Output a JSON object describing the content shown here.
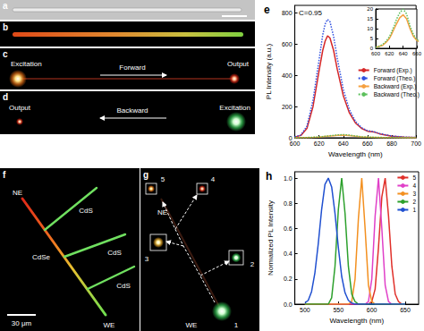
{
  "figure": {
    "panels": {
      "a": {
        "label": "a"
      },
      "b": {
        "label": "b"
      },
      "c": {
        "label": "c",
        "excitation": "Excitation",
        "direction": "Forward",
        "output": "Output"
      },
      "d": {
        "label": "d",
        "excitation": "Excitation",
        "direction": "Backward",
        "output": "Output"
      },
      "f": {
        "label": "f",
        "ends": [
          "NE",
          "WE"
        ],
        "core": "CdSe",
        "branches": [
          "CdS",
          "CdS",
          "CdS"
        ],
        "scale_bar": "30 μm"
      },
      "g": {
        "label": "g",
        "ends": [
          "NE",
          "WE"
        ],
        "points": [
          "1",
          "2",
          "3",
          "4",
          "5"
        ]
      }
    }
  },
  "chart_data": [
    {
      "type": "line",
      "title": "e",
      "annotation": "C=0.95",
      "xlabel": "Wavelength (nm)",
      "ylabel": "PL Intensity (a.u.)",
      "x": [
        600,
        605,
        610,
        615,
        620,
        623,
        625,
        627,
        629,
        632,
        635,
        640,
        645,
        650,
        655,
        660,
        665,
        670,
        680,
        690,
        700
      ],
      "series": [
        {
          "name": "Forward (Exp.)",
          "color": "#d62728",
          "line_style": "solid",
          "values": [
            5,
            15,
            60,
            200,
            430,
            560,
            620,
            655,
            640,
            560,
            440,
            270,
            160,
            95,
            60,
            42,
            38,
            25,
            10,
            4,
            2
          ]
        },
        {
          "name": "Forward (Theo.)",
          "color": "#3050e0",
          "line_style": "dotted",
          "values": [
            6,
            18,
            75,
            240,
            500,
            660,
            730,
            760,
            745,
            650,
            510,
            310,
            180,
            105,
            65,
            45,
            40,
            27,
            11,
            5,
            2
          ]
        },
        {
          "name": "Backward (Exp.)",
          "color": "#f5a040",
          "line_style": "solid",
          "values": [
            0.5,
            1,
            1.5,
            3,
            5,
            7,
            8.5,
            10,
            11.5,
            13.5,
            15.5,
            17,
            15,
            10,
            6,
            4,
            3,
            2,
            1,
            0.5,
            0.3
          ]
        },
        {
          "name": "Backward (Theo.)",
          "color": "#5cc05c",
          "line_style": "dotted",
          "values": [
            0.5,
            1,
            2,
            3.5,
            6,
            8,
            10,
            11.5,
            13.5,
            16,
            18,
            20,
            17.5,
            11.5,
            7,
            4.5,
            3.5,
            2.5,
            1.2,
            0.6,
            0.3
          ]
        }
      ],
      "xlim": [
        600,
        700
      ],
      "xticks": [
        600,
        620,
        640,
        660,
        680,
        700
      ],
      "ylim": [
        0,
        850
      ],
      "yticks": [
        0,
        200,
        400,
        600,
        800
      ],
      "legend": "right",
      "inset": {
        "series": [
          "Backward (Exp.)",
          "Backward (Theo.)"
        ],
        "xlim": [
          600,
          660
        ],
        "xticks": [
          600,
          620,
          640,
          660
        ],
        "ylim": [
          0,
          20
        ],
        "yticks": [
          0,
          5,
          10,
          15,
          20
        ]
      }
    },
    {
      "type": "line",
      "title": "h",
      "xlabel": "Wavelength (nm)",
      "ylabel": "Normalized PL Intensity",
      "x": [
        500,
        505,
        510,
        515,
        520,
        525,
        530,
        535,
        540,
        545,
        550,
        555,
        560,
        565,
        570,
        575,
        580,
        585,
        590,
        595,
        600,
        605,
        610,
        615,
        620,
        625,
        630,
        635,
        640,
        645,
        650
      ],
      "series": [
        {
          "name": "5",
          "color": "#e0302a",
          "values": [
            0,
            0,
            0,
            0,
            0,
            0,
            0,
            0,
            0,
            0,
            0,
            0,
            0,
            0,
            0,
            0,
            0,
            0,
            0,
            0,
            0.02,
            0.12,
            0.45,
            0.85,
            1,
            0.7,
            0.3,
            0.08,
            0.02,
            0,
            0
          ]
        },
        {
          "name": "4",
          "color": "#e040c8",
          "values": [
            0,
            0,
            0,
            0,
            0,
            0,
            0,
            0,
            0,
            0,
            0,
            0,
            0,
            0,
            0,
            0,
            0,
            0,
            0,
            0.02,
            0.2,
            0.7,
            1,
            0.6,
            0.15,
            0.02,
            0,
            0,
            0,
            0,
            0
          ]
        },
        {
          "name": "3",
          "color": "#f39020",
          "values": [
            0,
            0,
            0,
            0,
            0,
            0,
            0,
            0,
            0,
            0,
            0,
            0,
            0,
            0,
            0.02,
            0.2,
            0.68,
            1,
            0.6,
            0.15,
            0.02,
            0,
            0,
            0,
            0,
            0,
            0,
            0,
            0,
            0,
            0
          ]
        },
        {
          "name": "2",
          "color": "#2ca02c",
          "values": [
            0,
            0,
            0,
            0,
            0,
            0,
            0,
            0,
            0.05,
            0.3,
            0.75,
            1,
            0.72,
            0.3,
            0.08,
            0.02,
            0,
            0,
            0,
            0,
            0,
            0,
            0,
            0,
            0,
            0,
            0,
            0,
            0,
            0,
            0
          ]
        },
        {
          "name": "1",
          "color": "#2050d0",
          "values": [
            0.01,
            0.03,
            0.1,
            0.25,
            0.48,
            0.75,
            0.95,
            1,
            0.93,
            0.72,
            0.45,
            0.22,
            0.09,
            0.03,
            0.01,
            0,
            0,
            0,
            0,
            0,
            0,
            0,
            0,
            0,
            0,
            0,
            0,
            0,
            0,
            0,
            0
          ]
        }
      ],
      "xlim": [
        485,
        670
      ],
      "xticks": [
        500,
        550,
        600,
        650
      ],
      "ylim": [
        0,
        1.05
      ],
      "yticks": [
        {
          "value": 0,
          "label": "0.0"
        },
        0.2,
        0.4,
        0.6,
        0.8,
        {
          "value": 1,
          "label": "1.0"
        }
      ],
      "legend": "upper right"
    }
  ]
}
